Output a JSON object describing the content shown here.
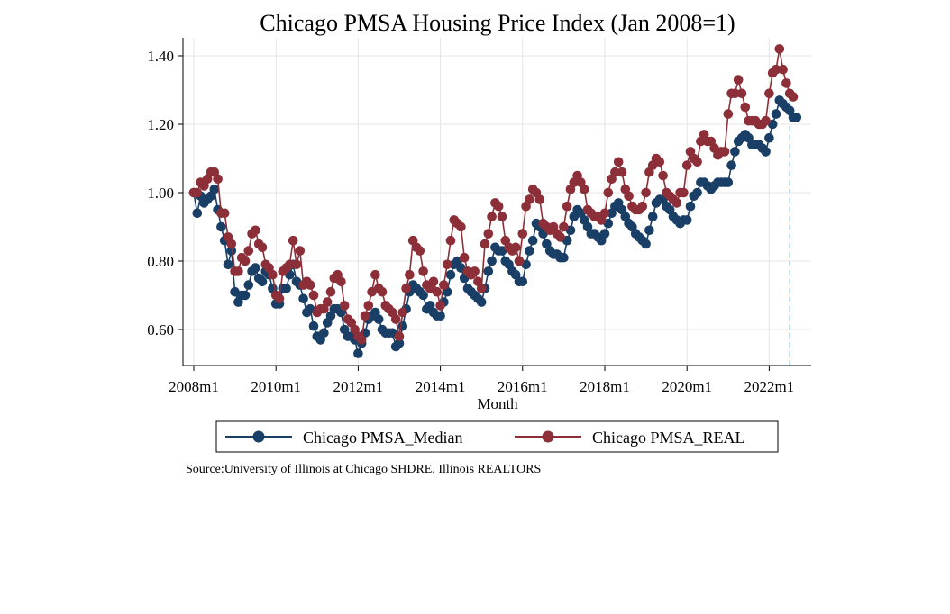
{
  "chart_data": {
    "type": "line",
    "title": "Chicago PMSA Housing Price Index (Jan 2008=1)",
    "xlabel": "Month",
    "ylabel": "",
    "x_start": "2008m1",
    "x_range_months": [
      0,
      182
    ],
    "xticks": [
      {
        "month": 0,
        "label": "2008m1"
      },
      {
        "month": 24,
        "label": "2010m1"
      },
      {
        "month": 48,
        "label": "2012m1"
      },
      {
        "month": 72,
        "label": "2014m1"
      },
      {
        "month": 96,
        "label": "2016m1"
      },
      {
        "month": 120,
        "label": "2018m1"
      },
      {
        "month": 144,
        "label": "2020m1"
      },
      {
        "month": 168,
        "label": "2022m1"
      }
    ],
    "yticks": [
      {
        "value": 0.6,
        "label": "0.60"
      },
      {
        "value": 0.8,
        "label": "0.80"
      },
      {
        "value": 1.0,
        "label": "1.00"
      },
      {
        "value": 1.2,
        "label": "1.20"
      },
      {
        "value": 1.4,
        "label": "1.40"
      }
    ],
    "ylim": [
      0.5,
      1.45
    ],
    "vline_month": 174,
    "grid": true,
    "legend_position": "bottom",
    "source": "Source:University of Illinois at Chicago SHDRE, Illinois REALTORS",
    "series": [
      {
        "name": "Chicago PMSA_Median",
        "color": "#1a3f66",
        "values": [
          1.0,
          0.94,
          0.99,
          0.97,
          0.98,
          0.99,
          1.01,
          0.95,
          0.9,
          0.86,
          0.79,
          0.83,
          0.71,
          0.68,
          0.7,
          0.7,
          0.73,
          0.77,
          0.78,
          0.75,
          0.74,
          0.77,
          0.76,
          0.72,
          0.675,
          0.675,
          0.72,
          0.72,
          0.76,
          0.79,
          0.74,
          0.73,
          0.69,
          0.65,
          0.66,
          0.61,
          0.58,
          0.57,
          0.59,
          0.62,
          0.64,
          0.66,
          0.66,
          0.65,
          0.6,
          0.58,
          0.58,
          0.57,
          0.53,
          0.56,
          0.59,
          0.63,
          0.64,
          0.65,
          0.63,
          0.6,
          0.59,
          0.59,
          0.59,
          0.55,
          0.56,
          0.61,
          0.66,
          0.71,
          0.73,
          0.72,
          0.71,
          0.7,
          0.66,
          0.67,
          0.65,
          0.64,
          0.64,
          0.68,
          0.71,
          0.76,
          0.79,
          0.8,
          0.78,
          0.75,
          0.72,
          0.71,
          0.7,
          0.69,
          0.68,
          0.72,
          0.77,
          0.8,
          0.84,
          0.83,
          0.83,
          0.8,
          0.79,
          0.77,
          0.76,
          0.74,
          0.74,
          0.79,
          0.83,
          0.86,
          0.91,
          0.9,
          0.88,
          0.85,
          0.83,
          0.82,
          0.82,
          0.81,
          0.81,
          0.86,
          0.89,
          0.93,
          0.95,
          0.94,
          0.92,
          0.9,
          0.88,
          0.88,
          0.87,
          0.86,
          0.88,
          0.91,
          0.94,
          0.96,
          0.97,
          0.95,
          0.93,
          0.91,
          0.9,
          0.88,
          0.87,
          0.86,
          0.85,
          0.89,
          0.93,
          0.97,
          0.98,
          0.98,
          0.96,
          0.95,
          0.93,
          0.92,
          0.91,
          0.92,
          0.92,
          0.96,
          0.99,
          1.0,
          1.03,
          1.03,
          1.02,
          1.01,
          1.02,
          1.03,
          1.03,
          1.03,
          1.03,
          1.08,
          1.12,
          1.15,
          1.16,
          1.17,
          1.16,
          1.14,
          1.14,
          1.14,
          1.13,
          1.12,
          1.16,
          1.2,
          1.23,
          1.27,
          1.26,
          1.25,
          1.24,
          1.22,
          1.22
        ]
      },
      {
        "name": "Chicago PMSA_REAL",
        "color": "#8c2f39",
        "values": [
          1.0,
          1.0,
          1.03,
          1.02,
          1.04,
          1.06,
          1.06,
          1.04,
          0.94,
          0.94,
          0.87,
          0.85,
          0.77,
          0.77,
          0.81,
          0.8,
          0.83,
          0.88,
          0.89,
          0.85,
          0.84,
          0.79,
          0.78,
          0.76,
          0.7,
          0.69,
          0.77,
          0.78,
          0.79,
          0.86,
          0.79,
          0.83,
          0.73,
          0.74,
          0.73,
          0.7,
          0.65,
          0.66,
          0.66,
          0.68,
          0.71,
          0.75,
          0.76,
          0.74,
          0.67,
          0.63,
          0.62,
          0.6,
          0.58,
          0.57,
          0.64,
          0.67,
          0.71,
          0.76,
          0.72,
          0.71,
          0.67,
          0.66,
          0.65,
          0.63,
          0.58,
          0.65,
          0.72,
          0.76,
          0.86,
          0.84,
          0.83,
          0.77,
          0.73,
          0.72,
          0.74,
          0.71,
          0.67,
          0.73,
          0.79,
          0.86,
          0.92,
          0.91,
          0.9,
          0.81,
          0.77,
          0.76,
          0.77,
          0.74,
          0.72,
          0.85,
          0.88,
          0.93,
          0.97,
          0.96,
          0.93,
          0.86,
          0.84,
          0.83,
          0.84,
          0.8,
          0.88,
          0.96,
          0.98,
          1.01,
          1.0,
          0.98,
          0.91,
          0.9,
          0.89,
          0.9,
          0.88,
          0.87,
          0.9,
          0.96,
          1.01,
          1.03,
          1.05,
          1.03,
          1.01,
          0.95,
          0.94,
          0.93,
          0.93,
          0.92,
          0.94,
          1.0,
          1.04,
          1.06,
          1.09,
          1.06,
          1.01,
          0.99,
          0.96,
          0.95,
          0.95,
          0.96,
          1.0,
          1.06,
          1.08,
          1.1,
          1.09,
          1.05,
          1.0,
          0.99,
          0.98,
          0.97,
          1.0,
          1.0,
          1.08,
          1.12,
          1.1,
          1.09,
          1.15,
          1.17,
          1.15,
          1.15,
          1.13,
          1.11,
          1.12,
          1.12,
          1.23,
          1.29,
          1.29,
          1.33,
          1.29,
          1.25,
          1.21,
          1.21,
          1.21,
          1.2,
          1.2,
          1.21,
          1.29,
          1.35,
          1.36,
          1.42,
          1.36,
          1.32,
          1.29,
          1.28
        ]
      }
    ]
  }
}
